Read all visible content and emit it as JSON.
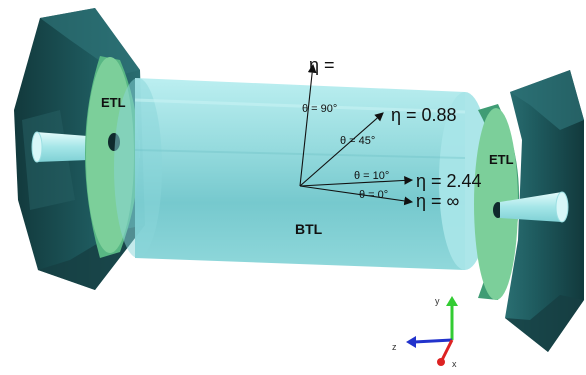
{
  "detectors": {
    "etl_left": "ETL",
    "etl_right": "ETL",
    "btl": "BTL"
  },
  "eta_labels": {
    "vertical": "η =",
    "at_45": "η = 0.88",
    "at_10": "η = 2.44",
    "at_0": "η = ∞"
  },
  "theta_labels": {
    "t90": "θ = 90°",
    "t45": "θ = 45°",
    "t10": "θ = 10°",
    "t0": "θ = 0°"
  },
  "axes": {
    "y": "y",
    "z": "z",
    "x": "x"
  },
  "colors": {
    "barrel": "#8fd8dc",
    "endcap_dark": "#1d5357",
    "etl_disk": "#7ccf9a",
    "axis_y": "#33cc33",
    "axis_z": "#2233cc",
    "axis_x": "#dd2222"
  }
}
